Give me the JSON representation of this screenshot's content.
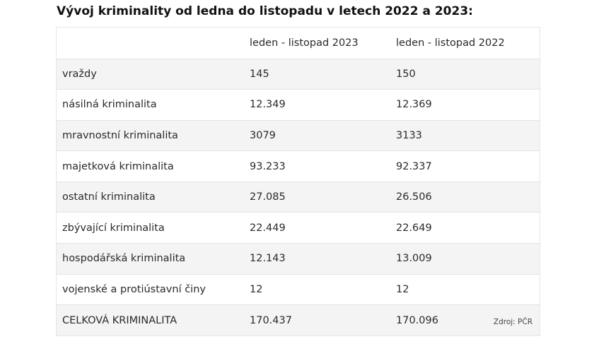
{
  "title": "Vývoj kriminality od ledna do listopadu v letech 2022 a 2023:",
  "table": {
    "headers": [
      "",
      "leden - listopad 2023",
      "leden - listopad 2022"
    ],
    "rows": [
      [
        "vraždy",
        "145",
        "150"
      ],
      [
        "násilná kriminalita",
        "12.349",
        "12.369"
      ],
      [
        "mravnostní kriminalita",
        "3079",
        "3133"
      ],
      [
        "majetková kriminalita",
        "93.233",
        "92.337"
      ],
      [
        "ostatní kriminalita",
        "27.085",
        "26.506"
      ],
      [
        "zbývající kriminalita",
        "22.449",
        "22.649"
      ],
      [
        "hospodářská kriminalita",
        "12.143",
        "13.009"
      ],
      [
        "vojenské a protiústavní činy",
        "12",
        "12"
      ],
      [
        "CELKOVÁ KRIMINALITA",
        "170.437",
        "170.096"
      ]
    ]
  },
  "source": "Zdroj: PČR",
  "colors": {
    "shaded_row": "#f4f4f4",
    "border": "#e4e4e4"
  }
}
